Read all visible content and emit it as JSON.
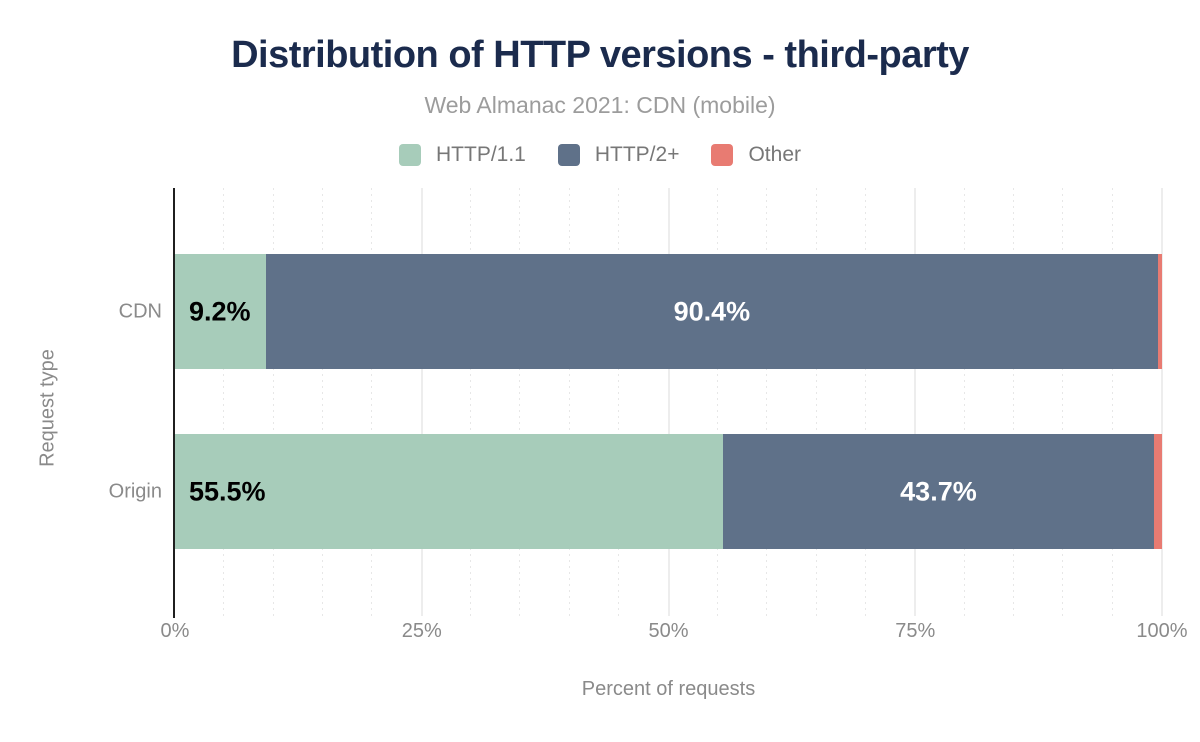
{
  "header": {
    "title": "Distribution of HTTP versions - third-party",
    "subtitle": "Web Almanac 2021: CDN (mobile)"
  },
  "chart_data": {
    "type": "bar",
    "orientation": "horizontal",
    "stacked": true,
    "title": "Distribution of HTTP versions - third-party",
    "subtitle": "Web Almanac 2021: CDN (mobile)",
    "categories": [
      "CDN",
      "Origin"
    ],
    "series": [
      {
        "name": "HTTP/1.1",
        "color": "#a7ccba",
        "values": [
          9.2,
          55.5
        ],
        "labels": [
          "9.2%",
          "55.5%"
        ],
        "label_color": "#000000",
        "label_align": "left"
      },
      {
        "name": "HTTP/2+",
        "color": "#5f7189",
        "values": [
          90.4,
          43.7
        ],
        "labels": [
          "90.4%",
          "43.7%"
        ],
        "label_color": "#ffffff",
        "label_align": "center"
      },
      {
        "name": "Other",
        "color": "#e87b72",
        "values": [
          0.4,
          0.8
        ],
        "labels": [
          "",
          ""
        ],
        "label_color": "#ffffff",
        "label_align": "center"
      }
    ],
    "xlabel": "Percent of requests",
    "ylabel": "Request type",
    "xlim": [
      0,
      100
    ],
    "x_ticks": [
      {
        "value": 0,
        "label": "0%"
      },
      {
        "value": 25,
        "label": "25%"
      },
      {
        "value": 50,
        "label": "50%"
      },
      {
        "value": 75,
        "label": "75%"
      },
      {
        "value": 100,
        "label": "100%"
      }
    ],
    "grid": {
      "minor_every": 5,
      "major_every": 25
    },
    "legend_position": "top",
    "background": "#ffffff",
    "axis_line_color": "#1f1f1f"
  }
}
